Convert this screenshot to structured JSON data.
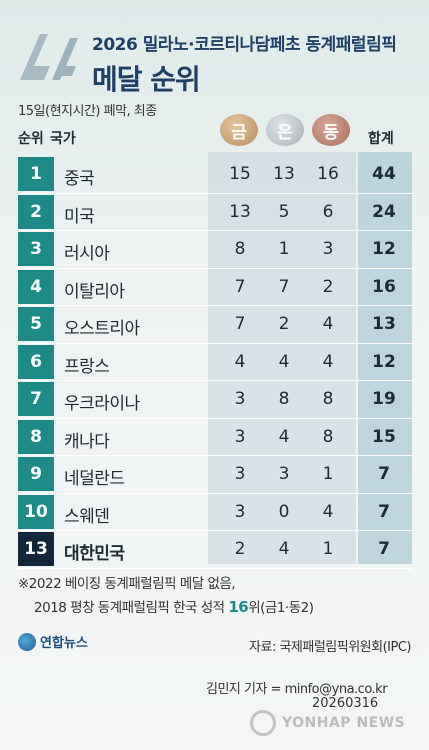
{
  "header": {
    "title_line1": "2026 밀라노·코르티나담페초 동계패럴림픽",
    "title_line2": "메달 순위",
    "subtitle": "15일(현지시간) 폐막, 최종"
  },
  "columns": {
    "rank": "순위",
    "country": "국가",
    "gold": "금",
    "silver": "은",
    "bronze": "동",
    "total": "합계"
  },
  "colors": {
    "rank_bg": "#1e8a87",
    "korea_rank_bg": "#14263a",
    "title": "#1f3f63",
    "gold": "#c9a175",
    "silver": "#c4c9cf",
    "bronze": "#bf8878",
    "total_col_bg": "#a4c4d1"
  },
  "chart_data": {
    "type": "table",
    "columns": [
      "순위",
      "국가",
      "금",
      "은",
      "동",
      "합계"
    ],
    "rows": [
      {
        "rank": "1",
        "country": "중국",
        "gold": "15",
        "silver": "13",
        "bronze": "16",
        "total": "44"
      },
      {
        "rank": "2",
        "country": "미국",
        "gold": "13",
        "silver": "5",
        "bronze": "6",
        "total": "24"
      },
      {
        "rank": "3",
        "country": "러시아",
        "gold": "8",
        "silver": "1",
        "bronze": "3",
        "total": "12"
      },
      {
        "rank": "4",
        "country": "이탈리아",
        "gold": "7",
        "silver": "7",
        "bronze": "2",
        "total": "16"
      },
      {
        "rank": "5",
        "country": "오스트리아",
        "gold": "7",
        "silver": "2",
        "bronze": "4",
        "total": "13"
      },
      {
        "rank": "6",
        "country": "프랑스",
        "gold": "4",
        "silver": "4",
        "bronze": "4",
        "total": "12"
      },
      {
        "rank": "7",
        "country": "우크라이나",
        "gold": "3",
        "silver": "8",
        "bronze": "8",
        "total": "19"
      },
      {
        "rank": "8",
        "country": "캐나다",
        "gold": "3",
        "silver": "4",
        "bronze": "8",
        "total": "15"
      },
      {
        "rank": "9",
        "country": "네덜란드",
        "gold": "3",
        "silver": "3",
        "bronze": "1",
        "total": "7"
      },
      {
        "rank": "10",
        "country": "스웨덴",
        "gold": "3",
        "silver": "0",
        "bronze": "4",
        "total": "7"
      },
      {
        "rank": "13",
        "country": "대한민국",
        "gold": "2",
        "silver": "4",
        "bronze": "1",
        "total": "7",
        "highlight": true
      }
    ]
  },
  "notes": {
    "line1": "※2022 베이징 동계패럴림픽 메달 없음,",
    "line2_pre": "2018 평창 동계패럴림픽 한국 성적 ",
    "line2_rank": "16",
    "line2_post": "위(금1·동2)"
  },
  "footer": {
    "agency": "연합뉴스",
    "source": "자료: 국제패럴림픽위원회(IPC)",
    "credit": "김민지 기자 = minfo@yna.co.kr",
    "date": "20260316",
    "watermark": "YONHAP NEWS"
  }
}
